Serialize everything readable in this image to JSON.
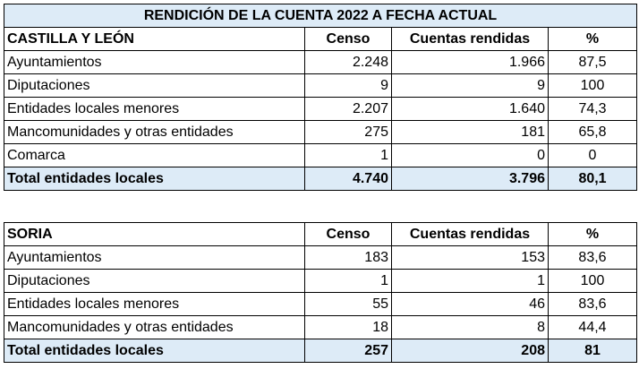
{
  "title": "RENDICIÓN DE LA CUENTA 2022 A FECHA ACTUAL",
  "tables": [
    {
      "header": [
        "CASTILLA Y LEÓN",
        "Censo",
        "Cuentas rendidas",
        "%"
      ],
      "rows": [
        [
          "Ayuntamientos",
          "2.248",
          "1.966",
          "87,5"
        ],
        [
          "Diputaciones",
          "9",
          "9",
          "100"
        ],
        [
          "Entidades locales menores",
          "2.207",
          "1.640",
          "74,3"
        ],
        [
          "Mancomunidades y otras entidades",
          "275",
          "181",
          "65,8"
        ],
        [
          "Comarca",
          "1",
          "0",
          "0"
        ]
      ],
      "total": [
        "Total entidades locales",
        "4.740",
        "3.796",
        "80,1"
      ]
    },
    {
      "header": [
        "SORIA",
        "Censo",
        "Cuentas rendidas",
        "%"
      ],
      "rows": [
        [
          "Ayuntamientos",
          "183",
          "153",
          "83,6"
        ],
        [
          "Diputaciones",
          "1",
          "1",
          "100"
        ],
        [
          "Entidades locales menores",
          "55",
          "46",
          "83,6"
        ],
        [
          "Mancomunidades y otras entidades",
          "18",
          "8",
          "44,4"
        ]
      ],
      "total": [
        "Total entidades locales",
        "257",
        "208",
        "81"
      ]
    }
  ]
}
